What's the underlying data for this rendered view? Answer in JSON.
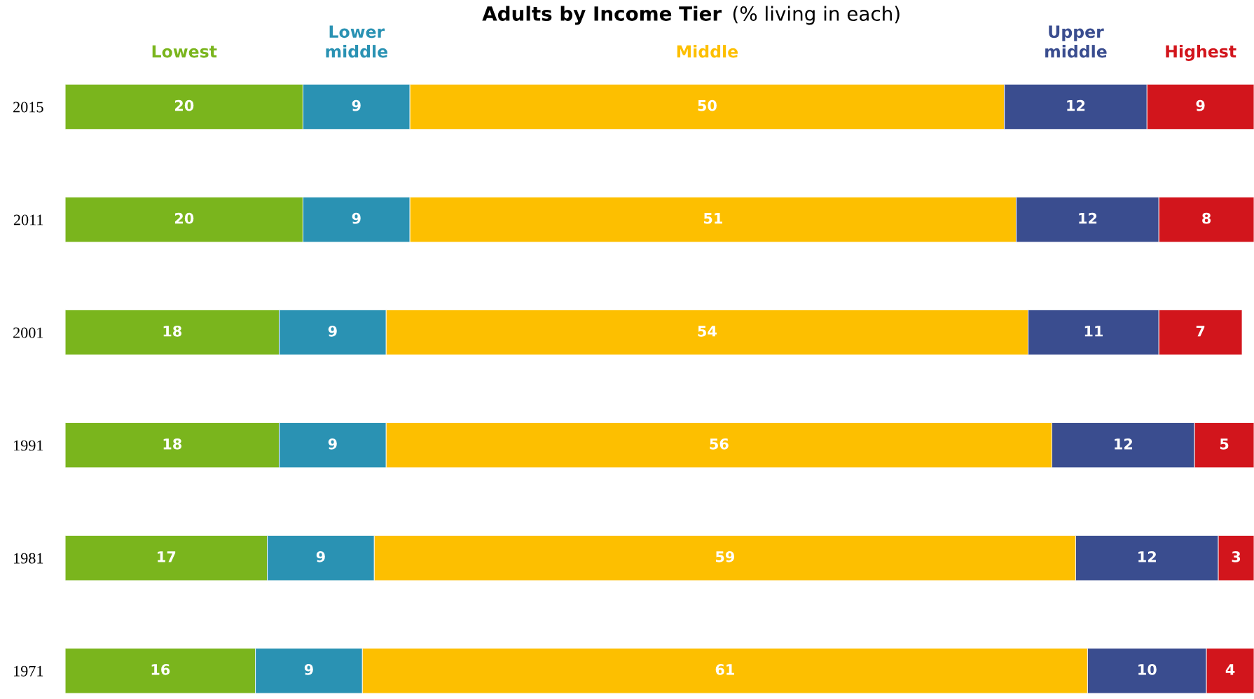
{
  "chart_data": {
    "type": "bar",
    "orientation": "horizontal",
    "stacked": true,
    "title": "Adults by Income Tier",
    "subtitle": "(% living in each)",
    "categories": [
      "2015",
      "2011",
      "2001",
      "1991",
      "1981",
      "1971"
    ],
    "series": [
      {
        "name": "Lowest",
        "color": "#7ab51d",
        "values": [
          20,
          20,
          18,
          18,
          17,
          16
        ]
      },
      {
        "name": "Lower middle",
        "color": "#2a92b3",
        "values": [
          9,
          9,
          9,
          9,
          9,
          9
        ]
      },
      {
        "name": "Middle",
        "color": "#fdbf00",
        "values": [
          50,
          51,
          54,
          56,
          59,
          61
        ]
      },
      {
        "name": "Upper middle",
        "color": "#3a4d8f",
        "values": [
          12,
          12,
          11,
          12,
          12,
          10
        ]
      },
      {
        "name": "Highest",
        "color": "#d2151c",
        "values": [
          9,
          8,
          7,
          5,
          3,
          4
        ]
      }
    ],
    "data_labels": true,
    "grid": false,
    "legend": false
  }
}
